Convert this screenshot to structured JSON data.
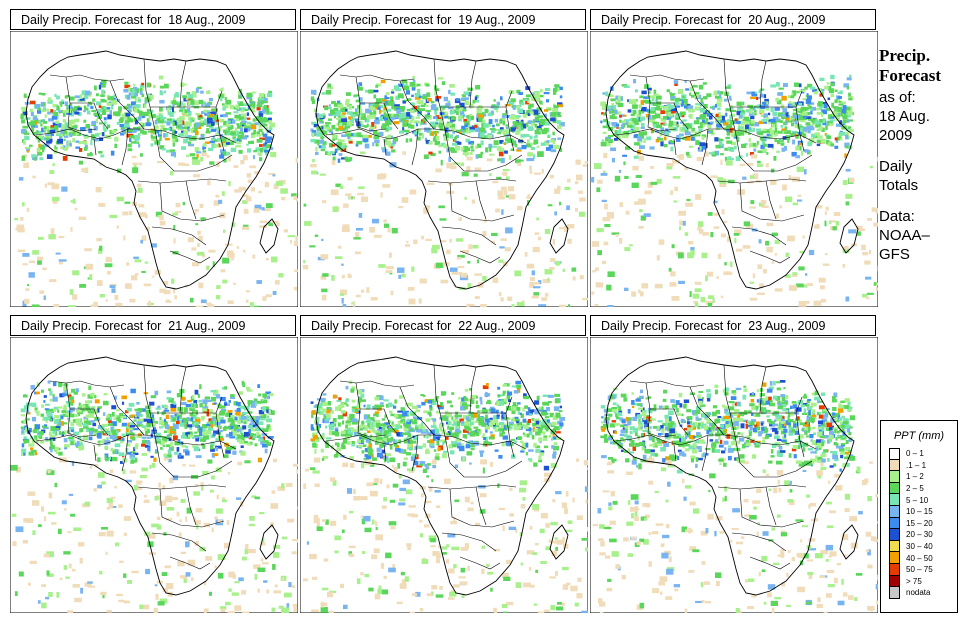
{
  "panels": [
    {
      "title_prefix": "Daily Precip. Forecast for",
      "date": "18 Aug., 2009"
    },
    {
      "title_prefix": "Daily Precip. Forecast for",
      "date": "19 Aug., 2009"
    },
    {
      "title_prefix": "Daily Precip. Forecast for",
      "date": "20 Aug., 2009"
    },
    {
      "title_prefix": "Daily Precip. Forecast for",
      "date": "21 Aug., 2009"
    },
    {
      "title_prefix": "Daily Precip. Forecast for",
      "date": "22 Aug., 2009"
    },
    {
      "title_prefix": "Daily Precip. Forecast for",
      "date": "23 Aug., 2009"
    }
  ],
  "sidebar": {
    "heading_line1": "Precip.",
    "heading_line2": "Forecast",
    "asof_label": "as of:",
    "asof_date_line1": "18 Aug.",
    "asof_date_line2": "2009",
    "totals_line1": "Daily",
    "totals_line2": "Totals",
    "data_label": "Data:",
    "data_source_line1": "NOAA–",
    "data_source_line2": "GFS"
  },
  "legend": {
    "title": "PPT (mm)",
    "items": [
      {
        "label": "0 – 1",
        "color": "#ffffff"
      },
      {
        "label": ".1 – 1",
        "color": "#f0dcb8"
      },
      {
        "label": "1 – 2",
        "color": "#a8f08c"
      },
      {
        "label": "2 – 5",
        "color": "#5ad65a"
      },
      {
        "label": "5 – 10",
        "color": "#78e6b4"
      },
      {
        "label": "10 – 15",
        "color": "#78b4f0"
      },
      {
        "label": "15 – 20",
        "color": "#3c8cf0"
      },
      {
        "label": "20 – 30",
        "color": "#1e50d2"
      },
      {
        "label": "30 – 40",
        "color": "#f0dc50"
      },
      {
        "label": "40 – 50",
        "color": "#f0a000"
      },
      {
        "label": "50 – 75",
        "color": "#e63c00"
      },
      {
        "label": "> 75",
        "color": "#a00000"
      },
      {
        "label": "nodata",
        "color": "#c8c8c8"
      }
    ]
  }
}
